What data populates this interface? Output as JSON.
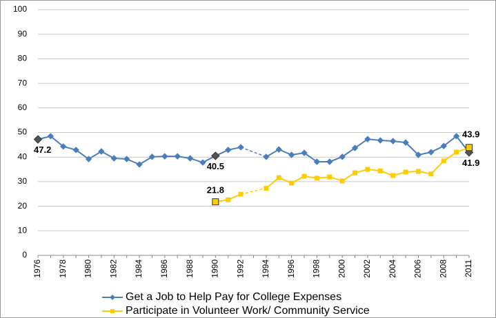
{
  "chart_data": {
    "type": "line",
    "categories": [
      "1976",
      null,
      "1978",
      null,
      "1980",
      null,
      "1982",
      null,
      "1984",
      null,
      "1986",
      null,
      "1988",
      null,
      "1990",
      null,
      "1992",
      null,
      "1994",
      null,
      "1996",
      null,
      "1998",
      null,
      "2000",
      null,
      "2002",
      null,
      "2004",
      null,
      "2006",
      null,
      "2008",
      null,
      "2011"
    ],
    "series": [
      {
        "name": "Get a Job to Help Pay for College Expenses",
        "color": "#4a7ebb",
        "marker": "diamond",
        "values": [
          47.2,
          48.5,
          44.3,
          42.9,
          39.2,
          42.3,
          39.5,
          39.2,
          37.0,
          40.1,
          40.3,
          40.3,
          39.5,
          37.8,
          40.5,
          42.9,
          44.0,
          null,
          40.1,
          43.1,
          40.9,
          41.7,
          38.1,
          38.1,
          40.1,
          43.7,
          47.3,
          46.8,
          46.5,
          45.9,
          40.9,
          42.0,
          44.5,
          48.5,
          41.9
        ],
        "labeled_points": [
          0,
          14,
          34
        ]
      },
      {
        "name": "Participate in Volunteer Work/ Community Service",
        "color": "#ffcc00",
        "marker": "square",
        "values": [
          null,
          null,
          null,
          null,
          null,
          null,
          null,
          null,
          null,
          null,
          null,
          null,
          null,
          null,
          21.8,
          22.6,
          24.9,
          null,
          27.3,
          31.6,
          29.4,
          32.2,
          31.4,
          31.9,
          30.3,
          33.6,
          35.0,
          34.4,
          32.5,
          33.9,
          34.2,
          33.1,
          38.4,
          42.0,
          43.9
        ],
        "labeled_points": [
          14,
          34
        ]
      }
    ],
    "ylim": [
      0,
      100
    ],
    "yticks": [
      0,
      10,
      20,
      30,
      40,
      50,
      60,
      70,
      80,
      90,
      100
    ],
    "grid": true,
    "legend": "bottom"
  }
}
